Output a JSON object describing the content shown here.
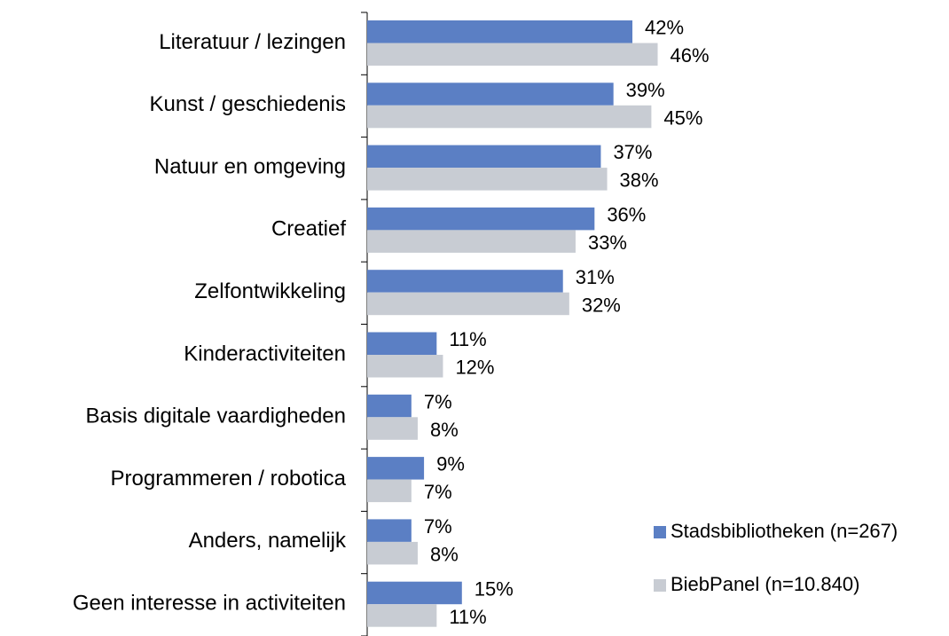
{
  "chart_data": {
    "type": "bar",
    "orientation": "horizontal",
    "categories": [
      "Literatuur / lezingen",
      "Kunst / geschiedenis",
      "Natuur en omgeving",
      "Creatief",
      "Zelfontwikkeling",
      "Kinderactiviteiten",
      "Basis digitale vaardigheden",
      "Programmeren / robotica",
      "Anders, namelijk",
      "Geen interesse in activiteiten"
    ],
    "series": [
      {
        "name": "Stadsbibliotheken (n=267)",
        "color": "#5b7fc4",
        "values": [
          42,
          39,
          37,
          36,
          31,
          11,
          7,
          9,
          7,
          15
        ],
        "value_labels": [
          "42%",
          "39%",
          "37%",
          "36%",
          "31%",
          "11%",
          "7%",
          "9%",
          "7%",
          "15%"
        ]
      },
      {
        "name": "BiebPanel (n=10.840)",
        "color": "#c8ccd3",
        "values": [
          46,
          45,
          38,
          33,
          32,
          12,
          8,
          7,
          8,
          11
        ],
        "value_labels": [
          "46%",
          "45%",
          "38%",
          "33%",
          "32%",
          "12%",
          "8%",
          "7%",
          "8%",
          "11%"
        ]
      }
    ],
    "legend": "lower right"
  }
}
